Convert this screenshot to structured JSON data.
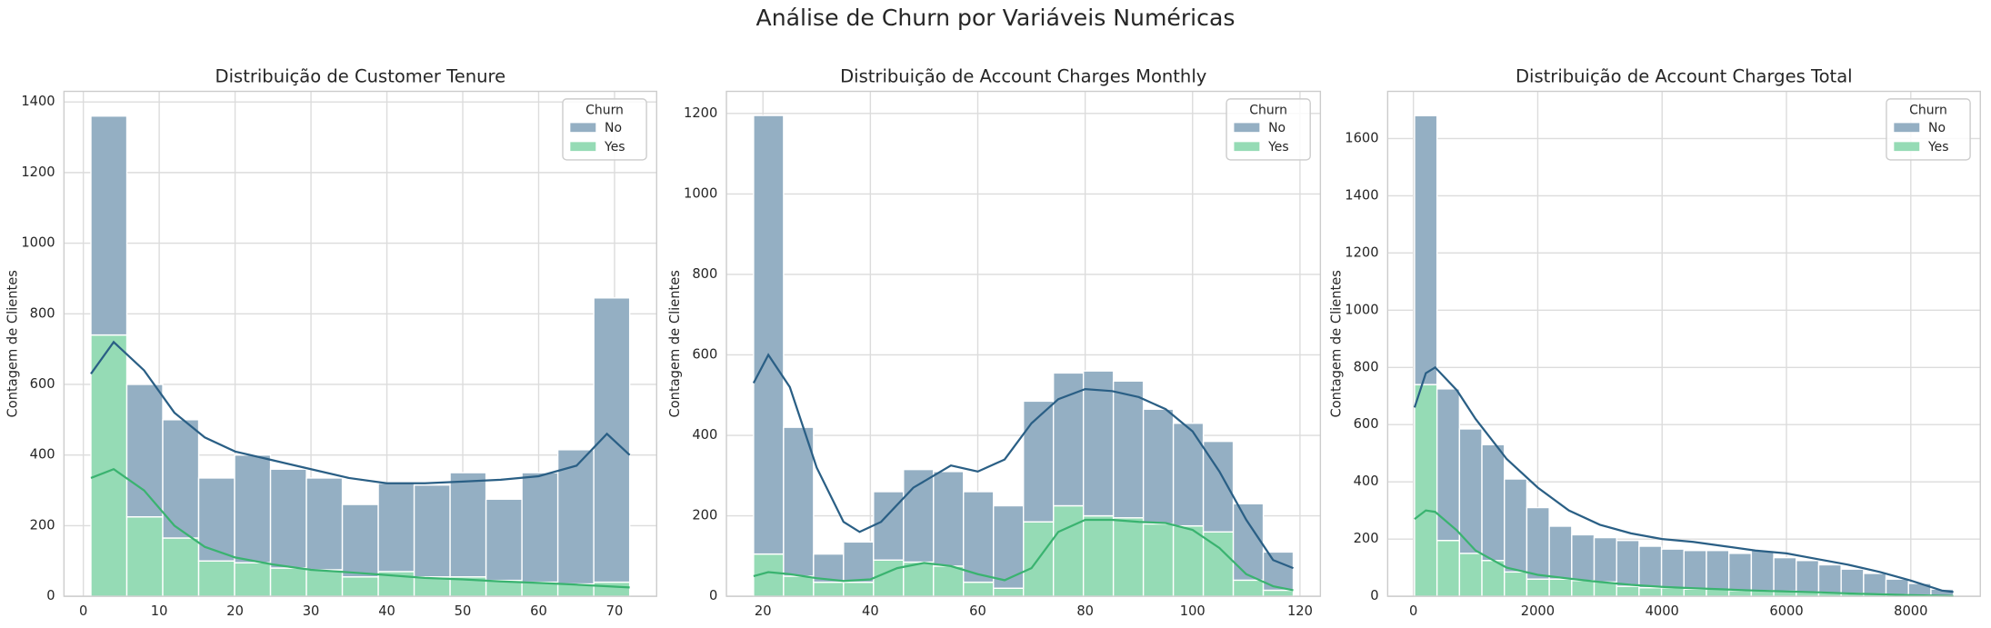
{
  "title": "Análise de Churn por Variáveis Numéricas",
  "chart_data": [
    {
      "type": "histogram",
      "title": "Distribuição de Customer Tenure",
      "y_label": "Contagem de Clientes",
      "stacked": true,
      "grid": true,
      "legend_title": "Churn",
      "legend": "upper right",
      "xlim": [
        -2.55,
        75.55
      ],
      "ylim": [
        0,
        1430
      ],
      "xticks": [
        0,
        10,
        20,
        30,
        40,
        50,
        60,
        70
      ],
      "yticks": [
        0,
        200,
        400,
        600,
        800,
        1000,
        1200,
        1400
      ],
      "bins": [
        1,
        5.733,
        10.467,
        15.2,
        19.933,
        24.667,
        29.4,
        34.133,
        38.867,
        43.6,
        48.333,
        53.067,
        57.8,
        62.533,
        67.267,
        72
      ],
      "series": [
        {
          "name": "No",
          "color": "#94afc3",
          "line_color": "#2a5f85",
          "values": [
            620,
            375,
            335,
            235,
            305,
            280,
            260,
            205,
            250,
            260,
            295,
            230,
            310,
            380,
            805
          ],
          "kde": {
            "x": [
              1,
              4,
              8,
              12,
              16,
              20,
              25,
              30,
              35,
              40,
              45,
              50,
              55,
              60,
              65,
              69,
              72
            ],
            "values": [
              630,
              720,
              640,
              520,
              450,
              410,
              385,
              360,
              335,
              320,
              320,
              325,
              330,
              340,
              370,
              460,
              400
            ]
          }
        },
        {
          "name": "Yes",
          "color": "#95dbb5",
          "line_color": "#3ab370",
          "values": [
            740,
            225,
            165,
            100,
            95,
            80,
            75,
            55,
            70,
            55,
            55,
            45,
            40,
            35,
            40
          ],
          "kde": {
            "x": [
              1,
              4,
              8,
              12,
              16,
              20,
              25,
              30,
              35,
              40,
              45,
              50,
              55,
              60,
              65,
              72
            ],
            "values": [
              335,
              360,
              300,
              200,
              140,
              110,
              90,
              75,
              68,
              60,
              52,
              48,
              42,
              38,
              33,
              25
            ]
          }
        }
      ]
    },
    {
      "type": "histogram",
      "title": "Distribuição de Account Charges Monthly",
      "y_label": "Contagem de Clientes",
      "stacked": true,
      "grid": true,
      "legend_title": "Churn",
      "legend": "upper right",
      "xlim": [
        13.2,
        123.8
      ],
      "ylim": [
        0,
        1255
      ],
      "xticks": [
        20,
        40,
        60,
        80,
        100,
        120
      ],
      "yticks": [
        0,
        200,
        400,
        600,
        800,
        1000,
        1200
      ],
      "bins": [
        18.25,
        23.833,
        29.417,
        35,
        40.583,
        46.167,
        51.75,
        57.333,
        62.917,
        68.5,
        74.083,
        79.667,
        85.25,
        90.833,
        96.417,
        102,
        107.583,
        113.167,
        118.75
      ],
      "series": [
        {
          "name": "No",
          "color": "#94afc3",
          "line_color": "#2a5f85",
          "values": [
            1090,
            370,
            70,
            100,
            170,
            230,
            235,
            225,
            205,
            300,
            330,
            360,
            340,
            285,
            255,
            225,
            190,
            95
          ],
          "kde": {
            "x": [
              18.25,
              21,
              25,
              30,
              35,
              38,
              42,
              48,
              55,
              60,
              65,
              70,
              75,
              80,
              85,
              90,
              95,
              100,
              105,
              110,
              115,
              118.75
            ],
            "values": [
              530,
              600,
              520,
              320,
              185,
              160,
              185,
              270,
              325,
              310,
              340,
              430,
              490,
              515,
              510,
              495,
              465,
              410,
              310,
              190,
              90,
              70
            ]
          }
        },
        {
          "name": "Yes",
          "color": "#95dbb5",
          "line_color": "#3ab370",
          "values": [
            105,
            50,
            35,
            35,
            90,
            85,
            75,
            35,
            20,
            185,
            225,
            200,
            195,
            180,
            175,
            160,
            40,
            15
          ],
          "kde": {
            "x": [
              18.25,
              21,
              25,
              30,
              35,
              40,
              45,
              50,
              55,
              60,
              65,
              70,
              75,
              80,
              85,
              90,
              95,
              100,
              105,
              110,
              115,
              118.75
            ],
            "values": [
              50,
              60,
              55,
              45,
              38,
              42,
              70,
              83,
              75,
              55,
              40,
              70,
              160,
              190,
              190,
              185,
              182,
              165,
              120,
              55,
              25,
              15
            ]
          }
        }
      ]
    },
    {
      "type": "histogram",
      "title": "Distribuição de Account Charges Total",
      "y_label": "Contagem de Clientes",
      "stacked": true,
      "grid": true,
      "legend_title": "Churn",
      "legend": "upper right",
      "xlim": [
        -414,
        9118
      ],
      "ylim": [
        0,
        1765
      ],
      "xticks": [
        0,
        2000,
        4000,
        6000,
        8000
      ],
      "yticks": [
        0,
        200,
        400,
        600,
        800,
        1000,
        1200,
        1400,
        1600
      ],
      "bins": [
        18.8,
        379.9,
        741,
        1102,
        1463.1,
        1824.2,
        2185.3,
        2546.4,
        2907.5,
        3268.5,
        3629.6,
        3990.7,
        4351.8,
        4712.9,
        5074,
        5435,
        5796.1,
        6157.2,
        6518.3,
        6879.4,
        7240.5,
        7601.5,
        7962.6,
        8323.7,
        8684.8
      ],
      "series": [
        {
          "name": "No",
          "color": "#94afc3",
          "line_color": "#2a5f85",
          "values": [
            940,
            530,
            435,
            405,
            325,
            250,
            185,
            160,
            155,
            160,
            145,
            135,
            135,
            135,
            130,
            140,
            117,
            110,
            98,
            85,
            72,
            54,
            41,
            23
          ],
          "kde": {
            "x": [
              18.8,
              200,
              350,
              700,
              1000,
              1500,
              2000,
              2500,
              3000,
              3500,
              4000,
              4500,
              5000,
              5500,
              6000,
              6500,
              7000,
              7500,
              8000,
              8500,
              8684.8
            ],
            "values": [
              660,
              780,
              800,
              720,
              620,
              480,
              380,
              300,
              250,
              220,
              200,
              190,
              175,
              160,
              150,
              130,
              110,
              85,
              55,
              20,
              15
            ]
          }
        },
        {
          "name": "Yes",
          "color": "#95dbb5",
          "line_color": "#3ab370",
          "values": [
            740,
            195,
            150,
            125,
            85,
            60,
            60,
            55,
            50,
            35,
            30,
            30,
            25,
            25,
            20,
            20,
            18,
            15,
            12,
            10,
            8,
            6,
            4,
            2
          ],
          "kde": {
            "x": [
              18.8,
              200,
              350,
              700,
              1000,
              1500,
              2000,
              2500,
              3000,
              3500,
              4000,
              4500,
              5000,
              5500,
              6000,
              6500,
              7000,
              7500,
              8000,
              8500,
              8684.8
            ],
            "values": [
              270,
              300,
              295,
              230,
              160,
              100,
              75,
              62,
              50,
              40,
              33,
              28,
              24,
              20,
              17,
              14,
              10,
              7,
              4,
              2,
              1
            ]
          }
        }
      ]
    }
  ]
}
